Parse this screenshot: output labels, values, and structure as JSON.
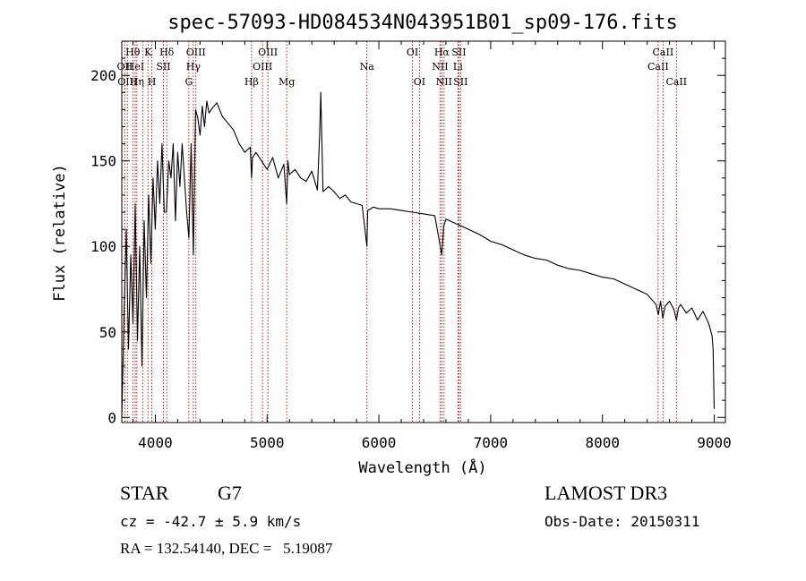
{
  "chart_data": {
    "type": "line",
    "title": "spec-57093-HD084534N043951B01_sp09-176.fits",
    "xlabel": "Wavelength (Å)",
    "ylabel": "Flux (relative)",
    "xlim": [
      3700,
      9100
    ],
    "ylim": [
      -3,
      220
    ],
    "xticks": [
      4000,
      5000,
      6000,
      7000,
      8000,
      9000
    ],
    "yticks": [
      0,
      50,
      100,
      150,
      200
    ],
    "series": [
      {
        "name": "spectrum",
        "x": [
          3700,
          3720,
          3740,
          3760,
          3780,
          3800,
          3820,
          3840,
          3860,
          3880,
          3900,
          3920,
          3940,
          3960,
          3980,
          4000,
          4020,
          4040,
          4060,
          4080,
          4100,
          4120,
          4140,
          4160,
          4180,
          4200,
          4220,
          4240,
          4260,
          4280,
          4300,
          4320,
          4340,
          4360,
          4380,
          4400,
          4420,
          4440,
          4460,
          4480,
          4500,
          4550,
          4600,
          4650,
          4700,
          4750,
          4800,
          4850,
          4861,
          4870,
          4900,
          4950,
          5000,
          5050,
          5100,
          5150,
          5175,
          5185,
          5200,
          5250,
          5300,
          5350,
          5400,
          5450,
          5470,
          5480,
          5500,
          5550,
          5600,
          5650,
          5700,
          5750,
          5800,
          5850,
          5893,
          5900,
          5950,
          6000,
          6100,
          6200,
          6300,
          6400,
          6500,
          6563,
          6580,
          6600,
          6700,
          6800,
          6900,
          7000,
          7100,
          7200,
          7300,
          7400,
          7500,
          7600,
          7700,
          7800,
          7900,
          8000,
          8100,
          8200,
          8300,
          8400,
          8480,
          8500,
          8520,
          8540,
          8560,
          8600,
          8640,
          8662,
          8680,
          8700,
          8750,
          8800,
          8850,
          8900,
          8950,
          8980,
          8990,
          9000
        ],
        "y": [
          0,
          60,
          110,
          40,
          95,
          55,
          125,
          45,
          100,
          30,
          115,
          70,
          130,
          90,
          140,
          110,
          150,
          125,
          160,
          120,
          120,
          150,
          140,
          160,
          115,
          155,
          135,
          160,
          140,
          120,
          105,
          160,
          95,
          180,
          175,
          165,
          182,
          170,
          185,
          178,
          180,
          184,
          176,
          172,
          168,
          160,
          155,
          158,
          140,
          152,
          155,
          150,
          145,
          152,
          140,
          148,
          125,
          150,
          142,
          145,
          140,
          138,
          144,
          133,
          165,
          190,
          132,
          135,
          132,
          128,
          130,
          126,
          125,
          124,
          100,
          121,
          123,
          122,
          122,
          121,
          120,
          119,
          118,
          95,
          112,
          116,
          113,
          110,
          107,
          103,
          101,
          98,
          95,
          93,
          92,
          89,
          87,
          86,
          84,
          82,
          81,
          78,
          75,
          72,
          66,
          60,
          68,
          58,
          65,
          68,
          63,
          57,
          64,
          66,
          61,
          64,
          57,
          62,
          55,
          48,
          40,
          5
        ]
      }
    ],
    "line_markers": [
      {
        "wavelength": 3727,
        "label": "OII",
        "row": 2
      },
      {
        "wavelength": 3750,
        "label": "OIII",
        "row": 3
      },
      {
        "wavelength": 3798,
        "label": "Hθ",
        "row": 1
      },
      {
        "wavelength": 3820,
        "label": "HeI",
        "row": 2
      },
      {
        "wavelength": 3835,
        "label": "Hη",
        "row": 3
      },
      {
        "wavelength": 3889,
        "label": "",
        "row": 0
      },
      {
        "wavelength": 3934,
        "label": "K",
        "row": 1
      },
      {
        "wavelength": 3969,
        "label": "H",
        "row": 3
      },
      {
        "wavelength": 4072,
        "label": "SII",
        "row": 2
      },
      {
        "wavelength": 4102,
        "label": "Hδ",
        "row": 1
      },
      {
        "wavelength": 4300,
        "label": "G",
        "row": 3
      },
      {
        "wavelength": 4340,
        "label": "Hγ",
        "row": 2
      },
      {
        "wavelength": 4363,
        "label": "OIII",
        "row": 1
      },
      {
        "wavelength": 4861,
        "label": "Hβ",
        "row": 3
      },
      {
        "wavelength": 4959,
        "label": "OIII",
        "row": 2
      },
      {
        "wavelength": 5007,
        "label": "OIII",
        "row": 1
      },
      {
        "wavelength": 5175,
        "label": "Mg",
        "row": 3
      },
      {
        "wavelength": 5893,
        "label": "Na",
        "row": 2
      },
      {
        "wavelength": 6300,
        "label": "OI",
        "row": 1
      },
      {
        "wavelength": 6363,
        "label": "OI",
        "row": 3
      },
      {
        "wavelength": 6548,
        "label": "NII",
        "row": 2
      },
      {
        "wavelength": 6563,
        "label": "Hα",
        "row": 1
      },
      {
        "wavelength": 6583,
        "label": "NII",
        "row": 3
      },
      {
        "wavelength": 6707,
        "label": "Li",
        "row": 2
      },
      {
        "wavelength": 6716,
        "label": "SII",
        "row": 1
      },
      {
        "wavelength": 6731,
        "label": "SII",
        "row": 3
      },
      {
        "wavelength": 8498,
        "label": "CaII",
        "row": 2
      },
      {
        "wavelength": 8542,
        "label": "CaII",
        "row": 1
      },
      {
        "wavelength": 8662,
        "label": "CaII",
        "row": 3
      }
    ]
  },
  "info": {
    "class": "STAR",
    "subclass": "G7",
    "survey": "LAMOST DR3",
    "cz": "cz = -42.7 ± 5.9 km/s",
    "obs_date": "Obs-Date: 20150311",
    "coords": "RA = 132.54140, DEC =   5.19087"
  }
}
